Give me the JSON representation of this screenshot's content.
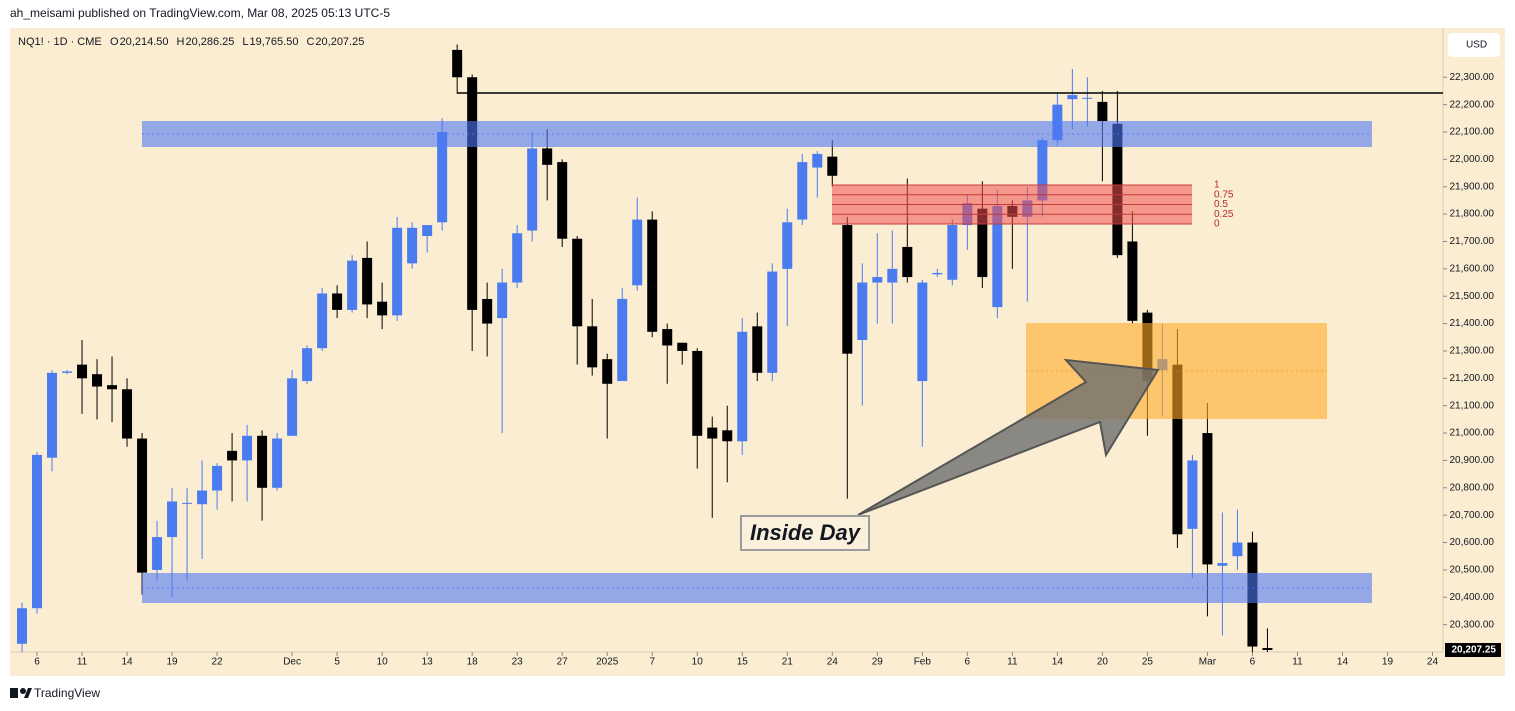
{
  "header": "ah_meisami published on TradingView.com, Mar 08, 2025 05:13 UTC-5",
  "footer": "TradingView",
  "chart_data": {
    "type": "candlestick",
    "symbol": "NQ1! · 1D · CME",
    "ohlc_legend": [
      {
        "label": "O",
        "value": "20,214.50"
      },
      {
        "label": "H",
        "value": "20,286.25"
      },
      {
        "label": "L",
        "value": "19,765.50"
      },
      {
        "label": "C",
        "value": "20,207.25"
      }
    ],
    "currency": "USD",
    "up_color": "#4a7cf0",
    "down_color": "#000000",
    "open": [
      20230,
      20360,
      20910,
      21220,
      21250,
      21215,
      21175,
      21160,
      20980,
      20500,
      20620,
      20745,
      20740,
      20790,
      20935,
      20900,
      20990,
      20800,
      20990,
      21190,
      21310,
      21510,
      21450,
      21640,
      21480,
      21430,
      21620,
      21720,
      21770,
      22400,
      22300,
      21490,
      21420,
      21550,
      21740,
      22040,
      21990,
      21710,
      21390,
      21270,
      21190,
      21540,
      21780,
      21380,
      21330,
      21300,
      21020,
      21010,
      20970,
      21390,
      21220,
      21600,
      21780,
      21970,
      22010,
      21760,
      21340,
      21550,
      21550,
      21680,
      21190,
      21580,
      21560,
      21760,
      21820,
      21460,
      21830,
      21790,
      21850,
      22070,
      22220,
      22225,
      22210,
      22130,
      21700,
      21440,
      21230,
      21250,
      20650,
      21000,
      20515,
      20550,
      20600,
      20214.5
    ],
    "high": [
      20380,
      20930,
      21230,
      21230,
      21340,
      21270,
      21280,
      21200,
      21000,
      20680,
      20800,
      20800,
      20900,
      20890,
      21000,
      21030,
      21010,
      21000,
      21230,
      21320,
      21530,
      21540,
      21650,
      21700,
      21550,
      21790,
      21770,
      21760,
      22150,
      22420,
      22310,
      21550,
      21600,
      21760,
      22100,
      22110,
      22000,
      21720,
      21490,
      21290,
      21530,
      21860,
      21810,
      21400,
      21330,
      21310,
      21060,
      21100,
      21420,
      21440,
      21620,
      21820,
      22020,
      22030,
      22070,
      21790,
      21620,
      21730,
      21740,
      21930,
      21560,
      21600,
      21780,
      21870,
      21920,
      21890,
      21850,
      21900,
      22080,
      22240,
      22330,
      22300,
      22250,
      22250,
      21810,
      21450,
      21400,
      21380,
      20920,
      21110,
      20710,
      20720,
      20640,
      20286.25
    ],
    "low": [
      20200,
      20340,
      20860,
      21215,
      21070,
      21050,
      21040,
      20950,
      20410,
      20460,
      20400,
      20460,
      20540,
      20720,
      20750,
      20750,
      20680,
      20790,
      20990,
      21180,
      21300,
      21420,
      21440,
      21420,
      21380,
      21410,
      21600,
      21660,
      21740,
      22240,
      21300,
      21280,
      21000,
      21530,
      21700,
      21850,
      21680,
      21250,
      21210,
      20980,
      21190,
      21520,
      21350,
      21180,
      21250,
      20870,
      20690,
      20820,
      20920,
      21190,
      21190,
      21390,
      21760,
      21860,
      21900,
      20760,
      21100,
      21400,
      21400,
      21550,
      20950,
      21570,
      21540,
      21670,
      21530,
      21420,
      21600,
      21480,
      21790,
      22050,
      22110,
      22120,
      21920,
      21640,
      21400,
      20990,
      21060,
      20580,
      20470,
      20330,
      20260,
      20500,
      20200,
      19765.5
    ],
    "close": [
      20360,
      20920,
      21220,
      21225,
      21200,
      21170,
      21160,
      20980,
      20490,
      20620,
      20750,
      20745,
      20790,
      20880,
      20900,
      20990,
      20800,
      20980,
      21200,
      21310,
      21510,
      21450,
      21630,
      21470,
      21430,
      21750,
      21750,
      21760,
      22100,
      22300,
      21450,
      21400,
      21550,
      21730,
      22040,
      21980,
      21710,
      21390,
      21240,
      21180,
      21490,
      21780,
      21370,
      21320,
      21300,
      20990,
      20980,
      20970,
      21370,
      21220,
      21590,
      21770,
      21990,
      22020,
      21940,
      21290,
      21550,
      21570,
      21600,
      21570,
      21550,
      21585,
      21760,
      21840,
      21570,
      21830,
      21790,
      21850,
      22070,
      22200,
      22235,
      22225,
      22140,
      21650,
      21410,
      21190,
      21270,
      20630,
      20900,
      20520,
      20525,
      20600,
      20220,
      20207.25
    ],
    "xlim": [
      -0.8,
      94.7
    ],
    "xticks": [
      {
        "value": 1,
        "label": "6"
      },
      {
        "value": 4,
        "label": "11"
      },
      {
        "value": 7,
        "label": "14"
      },
      {
        "value": 10,
        "label": "19"
      },
      {
        "value": 13,
        "label": "22"
      },
      {
        "value": 18,
        "label": "Dec"
      },
      {
        "value": 21,
        "label": "5"
      },
      {
        "value": 24,
        "label": "10"
      },
      {
        "value": 27,
        "label": "13"
      },
      {
        "value": 30,
        "label": "18"
      },
      {
        "value": 33,
        "label": "23"
      },
      {
        "value": 36,
        "label": "27"
      },
      {
        "value": 39,
        "label": "2025"
      },
      {
        "value": 42,
        "label": "7"
      },
      {
        "value": 45,
        "label": "10"
      },
      {
        "value": 48,
        "label": "15"
      },
      {
        "value": 51,
        "label": "21"
      },
      {
        "value": 54,
        "label": "24"
      },
      {
        "value": 57,
        "label": "29"
      },
      {
        "value": 60,
        "label": "Feb"
      },
      {
        "value": 63,
        "label": "6"
      },
      {
        "value": 66,
        "label": "11"
      },
      {
        "value": 69,
        "label": "14"
      },
      {
        "value": 72,
        "label": "20"
      },
      {
        "value": 75,
        "label": "25"
      },
      {
        "value": 79,
        "label": "Mar"
      },
      {
        "value": 82,
        "label": "6"
      },
      {
        "value": 85,
        "label": "11"
      },
      {
        "value": 88,
        "label": "14"
      },
      {
        "value": 91,
        "label": "19"
      },
      {
        "value": 94,
        "label": "24"
      }
    ],
    "ylim": [
      20200,
      22480
    ],
    "yticks": [
      {
        "value": 20300,
        "label": "20,300.00"
      },
      {
        "value": 20400,
        "label": "20,400.00"
      },
      {
        "value": 20500,
        "label": "20,500.00"
      },
      {
        "value": 20600,
        "label": "20,600.00"
      },
      {
        "value": 20700,
        "label": "20,700.00"
      },
      {
        "value": 20800,
        "label": "20,800.00"
      },
      {
        "value": 20900,
        "label": "20,900.00"
      },
      {
        "value": 21000,
        "label": "21,000.00"
      },
      {
        "value": 21100,
        "label": "21,100.00"
      },
      {
        "value": 21200,
        "label": "21,200.00"
      },
      {
        "value": 21300,
        "label": "21,300.00"
      },
      {
        "value": 21400,
        "label": "21,400.00"
      },
      {
        "value": 21500,
        "label": "21,500.00"
      },
      {
        "value": 21600,
        "label": "21,600.00"
      },
      {
        "value": 21700,
        "label": "21,700.00"
      },
      {
        "value": 21800,
        "label": "21,800.00"
      },
      {
        "value": 21900,
        "label": "21,900.00"
      },
      {
        "value": 22000,
        "label": "22,000.00"
      },
      {
        "value": 22100,
        "label": "22,100.00"
      },
      {
        "value": 22200,
        "label": "22,200.00"
      },
      {
        "value": 22300,
        "label": "22,300.00"
      }
    ],
    "last_price": {
      "value": 20207.25,
      "label": "20,207.25"
    },
    "annotation": "Inside Day",
    "fib_labels": [
      "1",
      "0.75",
      "0.5",
      "0.25",
      "0"
    ]
  }
}
